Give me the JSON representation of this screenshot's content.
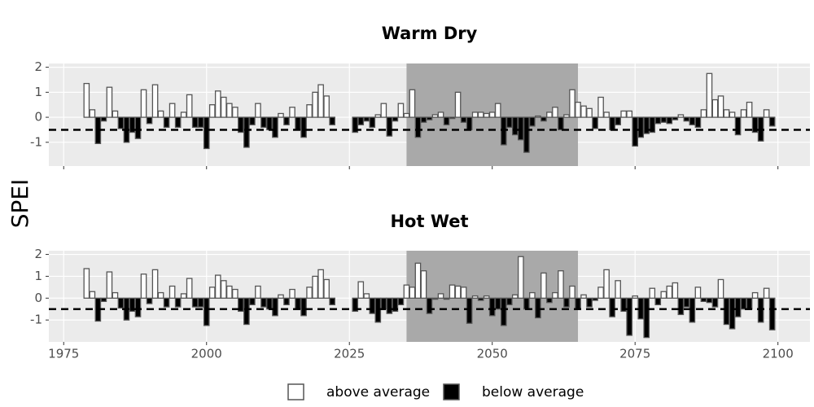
{
  "chart_data": [
    {
      "type": "bar",
      "title": "Warm Dry",
      "x": [
        1979,
        1980,
        1981,
        1982,
        1983,
        1984,
        1985,
        1986,
        1987,
        1988,
        1989,
        1990,
        1991,
        1992,
        1993,
        1994,
        1995,
        1996,
        1997,
        1998,
        1999,
        2000,
        2001,
        2002,
        2003,
        2004,
        2005,
        2006,
        2007,
        2008,
        2009,
        2010,
        2011,
        2012,
        2013,
        2014,
        2015,
        2016,
        2017,
        2018,
        2019,
        2020,
        2021,
        2022,
        2023,
        2024,
        2025,
        2026,
        2027,
        2028,
        2029,
        2030,
        2031,
        2032,
        2033,
        2034,
        2035,
        2036,
        2037,
        2038,
        2039,
        2040,
        2041,
        2042,
        2043,
        2044,
        2045,
        2046,
        2047,
        2048,
        2049,
        2050,
        2051,
        2052,
        2053,
        2054,
        2055,
        2056,
        2057,
        2058,
        2059,
        2060,
        2061,
        2062,
        2063,
        2064,
        2065,
        2066,
        2067,
        2068,
        2069,
        2070,
        2071,
        2072,
        2073,
        2074,
        2075,
        2076,
        2077,
        2078,
        2079,
        2080,
        2081,
        2082,
        2083,
        2084,
        2085,
        2086,
        2087,
        2088,
        2089,
        2090,
        2091,
        2092,
        2093,
        2094,
        2095,
        2096,
        2097,
        2098,
        2099
      ],
      "values": [
        1.35,
        0.3,
        -1.05,
        -0.15,
        1.2,
        0.25,
        -0.45,
        -1.0,
        -0.6,
        -0.85,
        1.1,
        -0.25,
        1.3,
        0.25,
        -0.4,
        0.55,
        -0.4,
        0.2,
        0.9,
        -0.4,
        -0.4,
        -1.25,
        0.5,
        1.05,
        0.8,
        0.55,
        0.4,
        -0.6,
        -1.2,
        -0.3,
        0.55,
        -0.4,
        -0.5,
        -0.8,
        0.15,
        -0.3,
        0.4,
        -0.5,
        -0.8,
        0.5,
        1.0,
        1.3,
        0.85,
        -0.3,
        null,
        null,
        null,
        -0.6,
        -0.3,
        -0.15,
        -0.4,
        0.1,
        0.55,
        -0.75,
        -0.15,
        0.55,
        0.15,
        1.1,
        -0.8,
        -0.2,
        -0.1,
        0.1,
        0.2,
        -0.3,
        -0.05,
        1.0,
        -0.2,
        -0.5,
        0.2,
        0.2,
        0.15,
        0.2,
        0.55,
        -1.1,
        -0.4,
        -0.7,
        -0.9,
        -1.4,
        -0.35,
        0.05,
        -0.15,
        0.2,
        0.4,
        -0.5,
        0.1,
        1.1,
        0.6,
        0.45,
        0.35,
        -0.45,
        0.8,
        0.2,
        -0.5,
        -0.3,
        0.25,
        0.25,
        -1.15,
        -0.8,
        -0.65,
        -0.6,
        -0.25,
        -0.2,
        -0.25,
        -0.1,
        0.1,
        -0.15,
        -0.3,
        -0.4,
        0.3,
        1.75,
        0.7,
        0.85,
        0.3,
        0.2,
        -0.7,
        0.3,
        0.6,
        -0.6,
        -0.95,
        0.3,
        -0.35
      ],
      "xlim": [
        1972.4,
        2105.6
      ],
      "xticks": [
        1975,
        2000,
        2025,
        2050,
        2075,
        2100
      ],
      "x_tick_labels": false,
      "ylim": [
        -1.95,
        2.15
      ],
      "yticks": [
        2,
        1,
        0,
        -1
      ],
      "shade": [
        2035,
        2065
      ],
      "hline": -0.5,
      "grid": true
    },
    {
      "type": "bar",
      "title": "Hot Wet",
      "x": [
        1979,
        1980,
        1981,
        1982,
        1983,
        1984,
        1985,
        1986,
        1987,
        1988,
        1989,
        1990,
        1991,
        1992,
        1993,
        1994,
        1995,
        1996,
        1997,
        1998,
        1999,
        2000,
        2001,
        2002,
        2003,
        2004,
        2005,
        2006,
        2007,
        2008,
        2009,
        2010,
        2011,
        2012,
        2013,
        2014,
        2015,
        2016,
        2017,
        2018,
        2019,
        2020,
        2021,
        2022,
        2023,
        2024,
        2025,
        2026,
        2027,
        2028,
        2029,
        2030,
        2031,
        2032,
        2033,
        2034,
        2035,
        2036,
        2037,
        2038,
        2039,
        2040,
        2041,
        2042,
        2043,
        2044,
        2045,
        2046,
        2047,
        2048,
        2049,
        2050,
        2051,
        2052,
        2053,
        2054,
        2055,
        2056,
        2057,
        2058,
        2059,
        2060,
        2061,
        2062,
        2063,
        2064,
        2065,
        2066,
        2067,
        2068,
        2069,
        2070,
        2071,
        2072,
        2073,
        2074,
        2075,
        2076,
        2077,
        2078,
        2079,
        2080,
        2081,
        2082,
        2083,
        2084,
        2085,
        2086,
        2087,
        2088,
        2089,
        2090,
        2091,
        2092,
        2093,
        2094,
        2095,
        2096,
        2097,
        2098,
        2099
      ],
      "values": [
        1.35,
        0.3,
        -1.05,
        -0.15,
        1.2,
        0.25,
        -0.45,
        -1.0,
        -0.6,
        -0.85,
        1.1,
        -0.25,
        1.3,
        0.25,
        -0.4,
        0.55,
        -0.4,
        0.2,
        0.9,
        -0.4,
        -0.4,
        -1.25,
        0.5,
        1.05,
        0.8,
        0.55,
        0.4,
        -0.6,
        -1.2,
        -0.3,
        0.55,
        -0.4,
        -0.5,
        -0.8,
        0.15,
        -0.3,
        0.4,
        -0.5,
        -0.8,
        0.5,
        1.0,
        1.3,
        0.85,
        -0.3,
        null,
        null,
        null,
        -0.6,
        0.75,
        0.2,
        -0.7,
        -1.1,
        -0.5,
        -0.7,
        -0.6,
        -0.3,
        0.6,
        0.5,
        1.6,
        1.25,
        -0.7,
        -0.05,
        0.2,
        -0.05,
        0.6,
        0.55,
        0.5,
        -1.15,
        0.1,
        -0.1,
        0.1,
        -0.8,
        -0.5,
        -1.25,
        -0.3,
        0.15,
        1.9,
        -0.5,
        0.25,
        -0.9,
        1.15,
        -0.2,
        0.25,
        1.25,
        -0.4,
        0.55,
        -0.5,
        0.15,
        -0.4,
        -0.1,
        0.5,
        1.3,
        -0.85,
        0.8,
        -0.6,
        -1.7,
        0.1,
        -0.95,
        -1.8,
        0.45,
        -0.3,
        0.3,
        0.55,
        0.7,
        -0.75,
        -0.4,
        -1.1,
        0.5,
        -0.15,
        -0.2,
        -0.4,
        0.85,
        -1.2,
        -1.4,
        -0.85,
        -0.5,
        -0.5,
        0.25,
        -1.1,
        0.45,
        -1.45
      ],
      "xlim": [
        1972.4,
        2105.6
      ],
      "xticks": [
        1975,
        2000,
        2025,
        2050,
        2075,
        2100
      ],
      "x_tick_labels": true,
      "ylim": [
        -2.0,
        2.17
      ],
      "yticks": [
        2,
        1,
        0,
        -1
      ],
      "shade": [
        2035,
        2065
      ],
      "hline": -0.5,
      "grid": true
    }
  ],
  "y_label": "SPEI",
  "legend": [
    {
      "name": "above average",
      "color": "#ffffff"
    },
    {
      "name": "below average",
      "color": "#000000"
    }
  ]
}
